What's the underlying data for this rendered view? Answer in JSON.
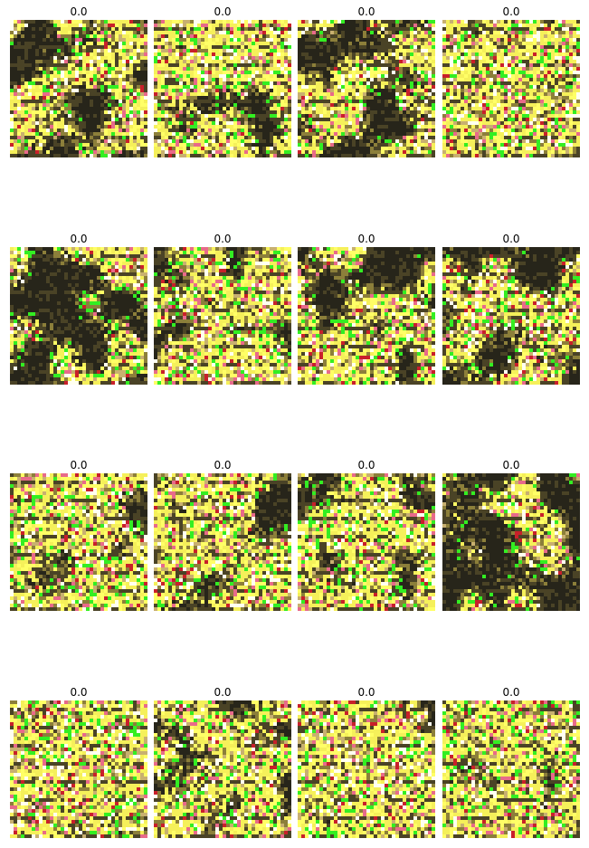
{
  "figure": {
    "panels": [
      {
        "title": "0.0",
        "coverage": 0.55
      },
      {
        "title": "0.0",
        "coverage": 0.7
      },
      {
        "title": "0.0",
        "coverage": 0.5
      },
      {
        "title": "0.0",
        "coverage": 0.85
      },
      {
        "title": "0.0",
        "coverage": 0.45
      },
      {
        "title": "0.0",
        "coverage": 0.65
      },
      {
        "title": "0.0",
        "coverage": 0.55
      },
      {
        "title": "0.0",
        "coverage": 0.6
      },
      {
        "title": "0.0",
        "coverage": 0.8
      },
      {
        "title": "0.0",
        "coverage": 0.6
      },
      {
        "title": "0.0",
        "coverage": 0.65
      },
      {
        "title": "0.0",
        "coverage": 0.5
      },
      {
        "title": "0.0",
        "coverage": 0.85
      },
      {
        "title": "0.0",
        "coverage": 0.6
      },
      {
        "title": "0.0",
        "coverage": 0.8
      },
      {
        "title": "0.0",
        "coverage": 0.85
      }
    ],
    "colors": {
      "background": "#27251a",
      "dark_olive": "#4a4326",
      "olive": "#8c7f3a",
      "yellow": "#f5f05a",
      "bright_yellow": "#ffff66",
      "white": "#fffff0",
      "green": "#33ee22",
      "pink": "#e86a8a",
      "red": "#c8202a",
      "tan": "#c8b070"
    }
  }
}
